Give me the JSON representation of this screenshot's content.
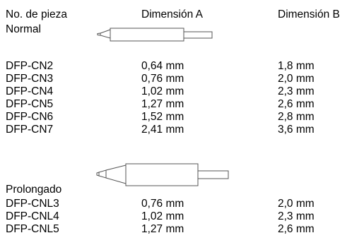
{
  "headers": {
    "part_no": "No. de pieza",
    "dim_a": "Dimensión A",
    "dim_b": "Dimensión B"
  },
  "sections": [
    {
      "label": "Normal",
      "rows": [
        {
          "part": "DFP-CN2",
          "a": "0,64 mm",
          "b": "1,8 mm"
        },
        {
          "part": "DFP-CN3",
          "a": "0,76 mm",
          "b": "2,0 mm"
        },
        {
          "part": "DFP-CN4",
          "a": "1,02 mm",
          "b": "2,3 mm"
        },
        {
          "part": "DFP-CN5",
          "a": "1,27 mm",
          "b": "2,6 mm"
        },
        {
          "part": "DFP-CN6",
          "a": "1,52 mm",
          "b": "2,8 mm"
        },
        {
          "part": "DFP-CN7",
          "a": "2,41 mm",
          "b": "3,6 mm"
        }
      ]
    },
    {
      "label": "Prolongado",
      "rows": [
        {
          "part": "DFP-CNL3",
          "a": "0,76 mm",
          "b": "2,0 mm"
        },
        {
          "part": "DFP-CNL4",
          "a": "1,02 mm",
          "b": "2,3 mm"
        },
        {
          "part": "DFP-CNL5",
          "a": "1,27 mm",
          "b": "2,6 mm"
        }
      ]
    }
  ]
}
